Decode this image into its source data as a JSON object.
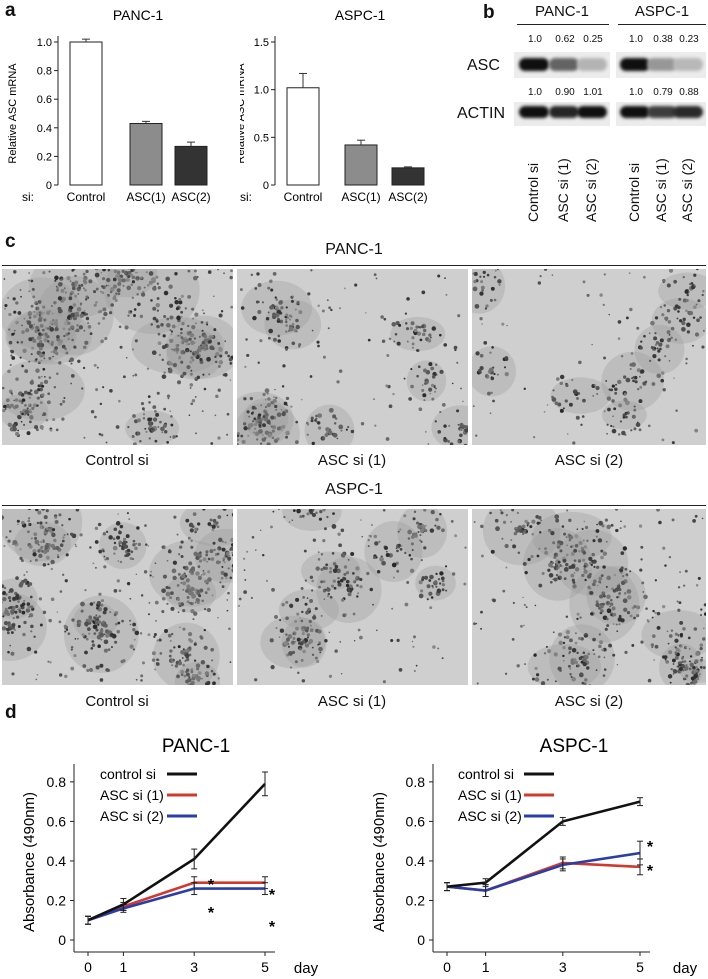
{
  "panels": {
    "a_label": "a",
    "b_label": "b",
    "c_label": "c",
    "d_label": "d"
  },
  "panel_a": {
    "si_label": "si:",
    "charts": [
      {
        "type": "bar",
        "title": "PANC-1",
        "ylabel": "Relative ASC mRNA",
        "categories": [
          "Control",
          "ASC(1)",
          "ASC(2)"
        ],
        "values": [
          1.0,
          0.43,
          0.27
        ],
        "errors": [
          0.02,
          0.015,
          0.03
        ],
        "yticks": [
          "0",
          "0.2",
          "0.4",
          "0.6",
          "0.8",
          "1.0"
        ],
        "ylim": [
          0,
          1.0
        ],
        "bar_colors": [
          "#ffffff",
          "#8c8c8c",
          "#333333"
        ]
      },
      {
        "type": "bar",
        "title": "ASPC-1",
        "ylabel": "Relative ASC mRNA",
        "categories": [
          "Control",
          "ASC(1)",
          "ASC(2)"
        ],
        "values": [
          1.02,
          0.42,
          0.18
        ],
        "errors": [
          0.15,
          0.05,
          0.01
        ],
        "yticks": [
          "0",
          "0.5",
          "1.0",
          "1.5"
        ],
        "ylim": [
          0,
          1.5
        ],
        "bar_colors": [
          "#ffffff",
          "#8c8c8c",
          "#333333"
        ]
      }
    ]
  },
  "panel_b": {
    "groups": [
      "PANC-1",
      "ASPC-1"
    ],
    "rows": [
      {
        "name": "ASC",
        "values": [
          "1.0",
          "0.62",
          "0.25",
          "1.0",
          "0.38",
          "0.23"
        ],
        "intensities": [
          1.0,
          0.62,
          0.25,
          1.0,
          0.38,
          0.23
        ]
      },
      {
        "name": "ACTIN",
        "values": [
          "1.0",
          "0.90",
          "1.01",
          "1.0",
          "0.79",
          "0.88"
        ],
        "intensities": [
          1.0,
          0.9,
          1.0,
          1.0,
          0.79,
          0.88
        ]
      }
    ],
    "lanes": [
      "Control si",
      "ASC si (1)",
      "ASC si (2)",
      "Control si",
      "ASC si (1)",
      "ASC si (2)"
    ]
  },
  "panel_c": {
    "sections": [
      {
        "title": "PANC-1",
        "captions": [
          "Control si",
          "ASC si (1)",
          "ASC si (2)"
        ]
      },
      {
        "title": "ASPC-1",
        "captions": [
          "Control si",
          "ASC si (1)",
          "ASC si (2)"
        ]
      }
    ]
  },
  "panel_d": {
    "charts": [
      {
        "type": "line",
        "title": "PANC-1",
        "ylabel": "Absorbance (490nm)",
        "xlabel": "day",
        "x": [
          0,
          1,
          3,
          5
        ],
        "xticks": [
          "0",
          "1",
          "3",
          "5"
        ],
        "yticks": [
          "0",
          "0.2",
          "0.4",
          "0.6",
          "0.8"
        ],
        "ylim": [
          0,
          0.85
        ],
        "series": [
          {
            "name": "control si",
            "color": "#111111",
            "values": [
              0.1,
              0.18,
              0.41,
              0.79
            ],
            "errors": [
              0.02,
              0.03,
              0.05,
              0.06
            ]
          },
          {
            "name": "ASC si (1)",
            "color": "#d03a2e",
            "values": [
              0.1,
              0.17,
              0.29,
              0.29
            ],
            "errors": [
              0.02,
              0.02,
              0.03,
              0.03
            ]
          },
          {
            "name": "ASC si (2)",
            "color": "#2b3ea8",
            "values": [
              0.1,
              0.16,
              0.26,
              0.26
            ],
            "errors": [
              0.02,
              0.02,
              0.03,
              0.03
            ]
          }
        ],
        "annotations": [
          "*",
          "*",
          "*",
          "*"
        ]
      },
      {
        "type": "line",
        "title": "ASPC-1",
        "ylabel": "Absorbance (490nm)",
        "xlabel": "day",
        "x": [
          0,
          1,
          3,
          5
        ],
        "xticks": [
          "0",
          "1",
          "3",
          "5"
        ],
        "yticks": [
          "0",
          "0.2",
          "0.4",
          "0.6",
          "0.8"
        ],
        "ylim": [
          0,
          0.85
        ],
        "series": [
          {
            "name": "control si",
            "color": "#111111",
            "values": [
              0.27,
              0.29,
              0.6,
              0.7
            ],
            "errors": [
              0.02,
              0.02,
              0.02,
              0.02
            ]
          },
          {
            "name": "ASC si (1)",
            "color": "#d03a2e",
            "values": [
              0.27,
              0.25,
              0.39,
              0.37
            ],
            "errors": [
              0.02,
              0.03,
              0.03,
              0.04
            ]
          },
          {
            "name": "ASC si (2)",
            "color": "#2b3ea8",
            "values": [
              0.27,
              0.25,
              0.38,
              0.44
            ],
            "errors": [
              0.02,
              0.03,
              0.03,
              0.06
            ]
          }
        ],
        "annotations": [
          "*",
          "*"
        ]
      }
    ]
  }
}
